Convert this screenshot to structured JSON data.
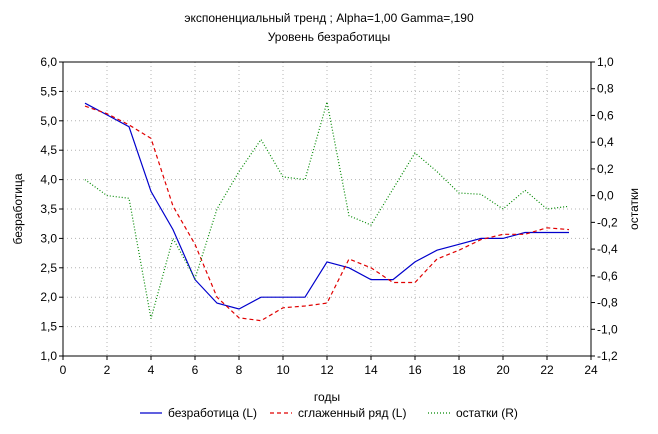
{
  "chart_data": {
    "type": "line",
    "title": "экспоненциальный тренд ; Alpha=1,00 Gamma=,190",
    "subtitle": "Уровень безработицы",
    "xlabel": "годы",
    "ylabel_left": "безработица",
    "ylabel_right": "остатки",
    "xlim": [
      0,
      24
    ],
    "ylim_left": [
      1.0,
      6.0
    ],
    "ylim_right": [
      -1.2,
      1.0
    ],
    "x_ticks": [
      "0",
      "2",
      "4",
      "6",
      "8",
      "10",
      "12",
      "14",
      "16",
      "18",
      "20",
      "22",
      "24"
    ],
    "y_ticks_left": [
      "1,0",
      "1,5",
      "2,0",
      "2,5",
      "3,0",
      "3,5",
      "4,0",
      "4,5",
      "5,0",
      "5,5",
      "6,0"
    ],
    "y_ticks_right": [
      "-1,2",
      "-1,0",
      "-0,8",
      "-0,6",
      "-0,4",
      "-0,2",
      "0,0",
      "0,2",
      "0,4",
      "0,6",
      "0,8",
      "1,0"
    ],
    "grid": true,
    "legend_position": "bottom",
    "x": [
      1,
      2,
      3,
      4,
      5,
      6,
      7,
      8,
      9,
      10,
      11,
      12,
      13,
      14,
      15,
      16,
      17,
      18,
      19,
      20,
      21,
      22,
      23
    ],
    "series": [
      {
        "name": "безработица (L)",
        "axis": "left",
        "color": "#0000cc",
        "style": "solid",
        "values": [
          5.3,
          5.1,
          4.9,
          3.8,
          3.15,
          2.3,
          1.9,
          1.8,
          2.0,
          2.0,
          2.0,
          2.6,
          2.5,
          2.3,
          2.3,
          2.6,
          2.8,
          2.9,
          3.0,
          3.0,
          3.1,
          3.1,
          3.1
        ]
      },
      {
        "name": "сглаженный ряд (L)",
        "axis": "left",
        "color": "#e00000",
        "style": "dashed",
        "values": [
          5.25,
          5.12,
          4.93,
          4.7,
          3.55,
          2.9,
          2.0,
          1.65,
          1.6,
          1.82,
          1.85,
          1.9,
          2.65,
          2.5,
          2.25,
          2.25,
          2.65,
          2.8,
          2.98,
          3.07,
          3.07,
          3.18,
          3.15
        ]
      },
      {
        "name": "остатки (R)",
        "axis": "right",
        "color": "#008800",
        "style": "dotted",
        "values": [
          0.12,
          0.0,
          -0.02,
          -0.92,
          -0.32,
          -0.62,
          -0.1,
          0.18,
          0.42,
          0.14,
          0.12,
          0.7,
          -0.15,
          -0.22,
          0.05,
          0.32,
          0.18,
          0.02,
          0.01,
          -0.1,
          0.04,
          -0.1,
          -0.08
        ]
      }
    ]
  }
}
